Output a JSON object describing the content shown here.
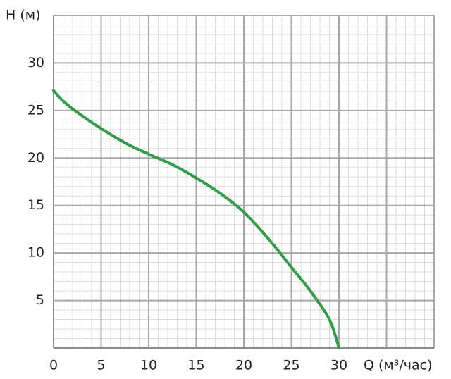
{
  "chart_data": {
    "type": "line",
    "y_label": "H (м)",
    "x_label": "Q (м³/час)",
    "x": [
      0,
      1,
      2.5,
      5,
      7.5,
      10,
      12.5,
      15,
      17.5,
      20,
      22.5,
      25,
      27,
      29,
      30
    ],
    "series": [
      {
        "color": "#2f9e44",
        "values": [
          27.1,
          26.0,
          24.8,
          23.1,
          21.6,
          20.4,
          19.3,
          17.9,
          16.3,
          14.3,
          11.6,
          8.5,
          6.0,
          3.0,
          0
        ]
      }
    ],
    "xlim": [
      0,
      40
    ],
    "ylim": [
      0,
      35
    ],
    "xticks": [
      0,
      5,
      10,
      15,
      20,
      25,
      30
    ],
    "yticks": [
      5,
      10,
      15,
      20,
      25,
      30
    ],
    "grid": true,
    "minor_grid": true
  }
}
